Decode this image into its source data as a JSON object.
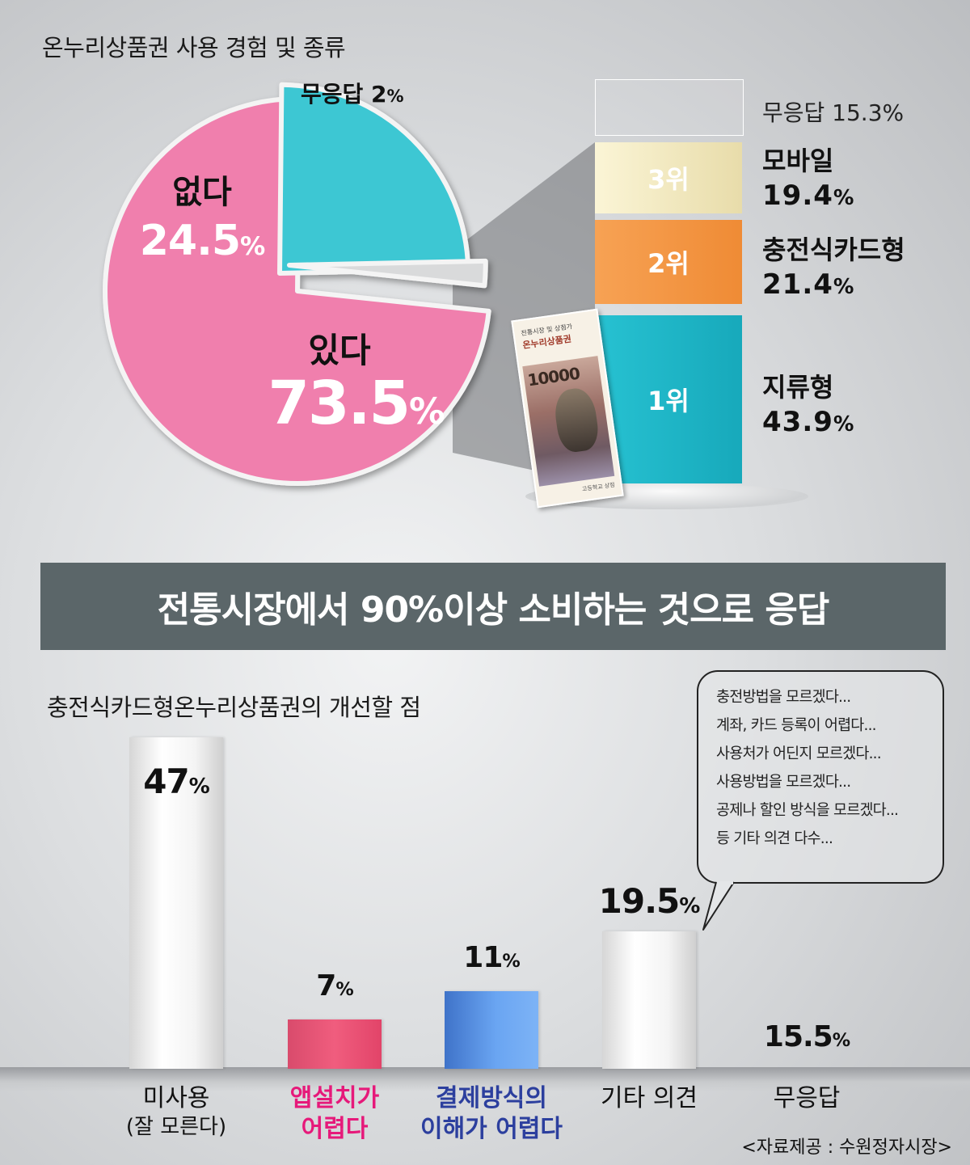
{
  "top": {
    "title": "온누리상품권 사용 경험 및 종류",
    "pie": {
      "yes": {
        "name": "있다",
        "value": "73.5",
        "unit": "%",
        "color": "#f07fad"
      },
      "no": {
        "name": "없다",
        "value": "24.5",
        "unit": "%",
        "color": "#3dc7d3"
      },
      "na": {
        "name": "무응답",
        "value": "2",
        "unit": "%",
        "color": "#d9dadb"
      }
    },
    "types": {
      "na": {
        "label": "무응답 15.3%"
      },
      "rank3": {
        "rank": "3위",
        "name": "모바일",
        "value": "19.4",
        "unit": "%",
        "color": "#f5ebc0"
      },
      "rank2": {
        "rank": "2위",
        "name": "충전식카드형",
        "value": "21.4",
        "unit": "%",
        "color": "#f59a48"
      },
      "rank1": {
        "rank": "1위",
        "name": "지류형",
        "value": "43.9",
        "unit": "%",
        "color": "#1db7c8"
      }
    },
    "voucher": {
      "line1": "전통시장 및 상점가",
      "line2": "온누리상품권",
      "amount": "10000",
      "bottom": "고등학교 상점"
    }
  },
  "banner": "전통시장에서 90%이상 소비하는 것으로 응답",
  "bottom": {
    "title": "충전식카드형온누리상품권의 개선할 점",
    "bubble": [
      "충전방법을 모르겠다...",
      "계좌, 카드 등록이 어렵다...",
      "사용처가 어딘지 모르겠다...",
      "사용방법을 모르겠다...",
      "공제나 할인 방식을 모르겠다...",
      "등 기타 의견 다수..."
    ],
    "source": "<자료제공 : 수원정자시장>"
  },
  "chart_data": [
    {
      "type": "pie",
      "title": "온누리상품권 사용 경험 및 종류",
      "slices": [
        {
          "label": "있다",
          "value": 73.5
        },
        {
          "label": "없다",
          "value": 24.5
        },
        {
          "label": "무응답",
          "value": 2
        }
      ]
    },
    {
      "type": "bar",
      "stacked": true,
      "categories": [
        "1위 지류형",
        "2위 충전식카드형",
        "3위 모바일",
        "무응답"
      ],
      "values": [
        43.9,
        21.4,
        19.4,
        15.3
      ]
    },
    {
      "type": "bar",
      "title": "충전식카드형온누리상품권의 개선할 점",
      "categories": [
        "미사용 (잘 모른다)",
        "앱설치가 어렵다",
        "결제방식의 이해가 어렵다",
        "기타 의견",
        "무응답"
      ],
      "values": [
        47,
        7,
        11,
        19.5,
        15.5
      ],
      "value_labels": [
        "47",
        "7",
        "11",
        "19.5",
        "15.5"
      ],
      "unit": "%",
      "category_lines": [
        [
          "미사용",
          "(잘 모른다)"
        ],
        [
          "앱설치가",
          "어렵다"
        ],
        [
          "결제방식의",
          "이해가 어렵다"
        ],
        [
          "기타 의견"
        ],
        [
          "무응답"
        ]
      ],
      "category_colors": [
        "#111111",
        "#e6197a",
        "#2c3f9e",
        "#111111",
        "#111111"
      ],
      "bar_styles": [
        "white",
        "pink",
        "blue",
        "white",
        "none"
      ]
    }
  ]
}
